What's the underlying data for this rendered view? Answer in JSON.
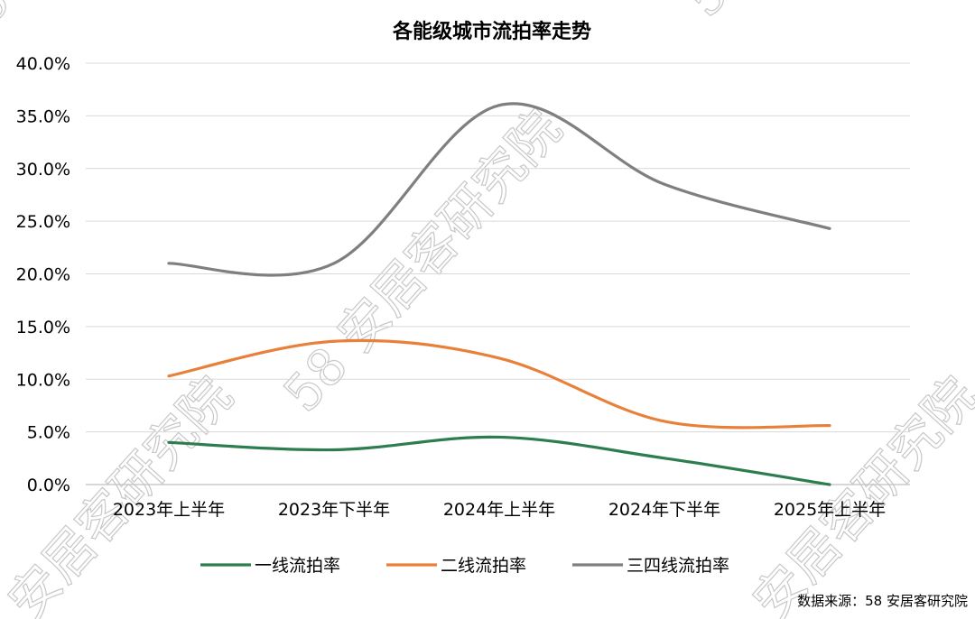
{
  "chart_data": {
    "type": "line",
    "title": "各能级城市流拍率走势",
    "categories": [
      "2023年上半年",
      "2023年下半年",
      "2024年上半年",
      "2024年下半年",
      "2025年上半年"
    ],
    "y_ticks": [
      "0.0%",
      "5.0%",
      "10.0%",
      "15.0%",
      "20.0%",
      "25.0%",
      "30.0%",
      "35.0%",
      "40.0%"
    ],
    "ylim": [
      0,
      40
    ],
    "grid": true,
    "legend_position": "bottom",
    "series": [
      {
        "name": "一线流拍率",
        "color": "#2e7d4f",
        "values": [
          4.0,
          3.3,
          4.5,
          2.5,
          0.0
        ]
      },
      {
        "name": "二线流拍率",
        "color": "#e8803a",
        "values": [
          10.3,
          13.6,
          12.0,
          6.0,
          5.6
        ]
      },
      {
        "name": "三四线流拍率",
        "color": "#7f7f7f",
        "values": [
          21.0,
          21.0,
          36.0,
          28.5,
          24.3
        ]
      }
    ]
  },
  "source_text": "数据来源：58 安居客研究院",
  "watermarks": [
    "58 安居客研究院",
    "安居客研究院",
    "安居客研究院",
    "58 安",
    "58"
  ]
}
